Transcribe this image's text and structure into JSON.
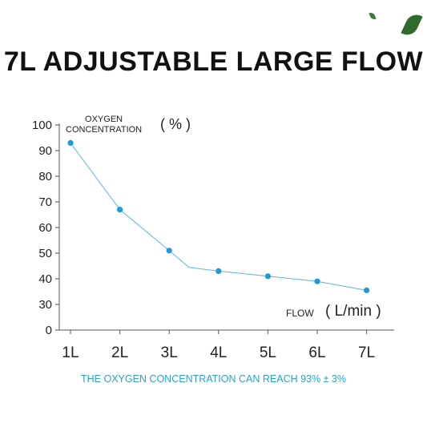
{
  "title": "7L ADJUSTABLE LARGE FLOW",
  "footer": "THE OXYGEN CONCENTRATION CAN REACH 93% ± 3%",
  "colors": {
    "line": "#5bb6de",
    "point": "#1f9ad8",
    "footer": "#2aa3c9"
  },
  "chart_data": {
    "type": "line",
    "title": "7L ADJUSTABLE LARGE FLOW",
    "ylabel_small": "OXYGEN\nCONCENTRATION",
    "ylabel_unit": "( % )",
    "xlabel_small": "FLOW",
    "xlabel_unit": "( L/min )",
    "categories": [
      "1L",
      "2L",
      "3L",
      "4L",
      "5L",
      "6L",
      "7L"
    ],
    "y_ticks": [
      0,
      30,
      40,
      50,
      60,
      70,
      80,
      90,
      100
    ],
    "ylim": [
      0,
      100
    ],
    "x": [
      1,
      2,
      3,
      3.4,
      4,
      5,
      6,
      7
    ],
    "y": [
      93,
      67,
      51,
      44.5,
      43,
      41,
      39,
      35.5
    ],
    "markers": [
      true,
      true,
      true,
      false,
      true,
      true,
      true,
      true
    ],
    "grid": false
  }
}
